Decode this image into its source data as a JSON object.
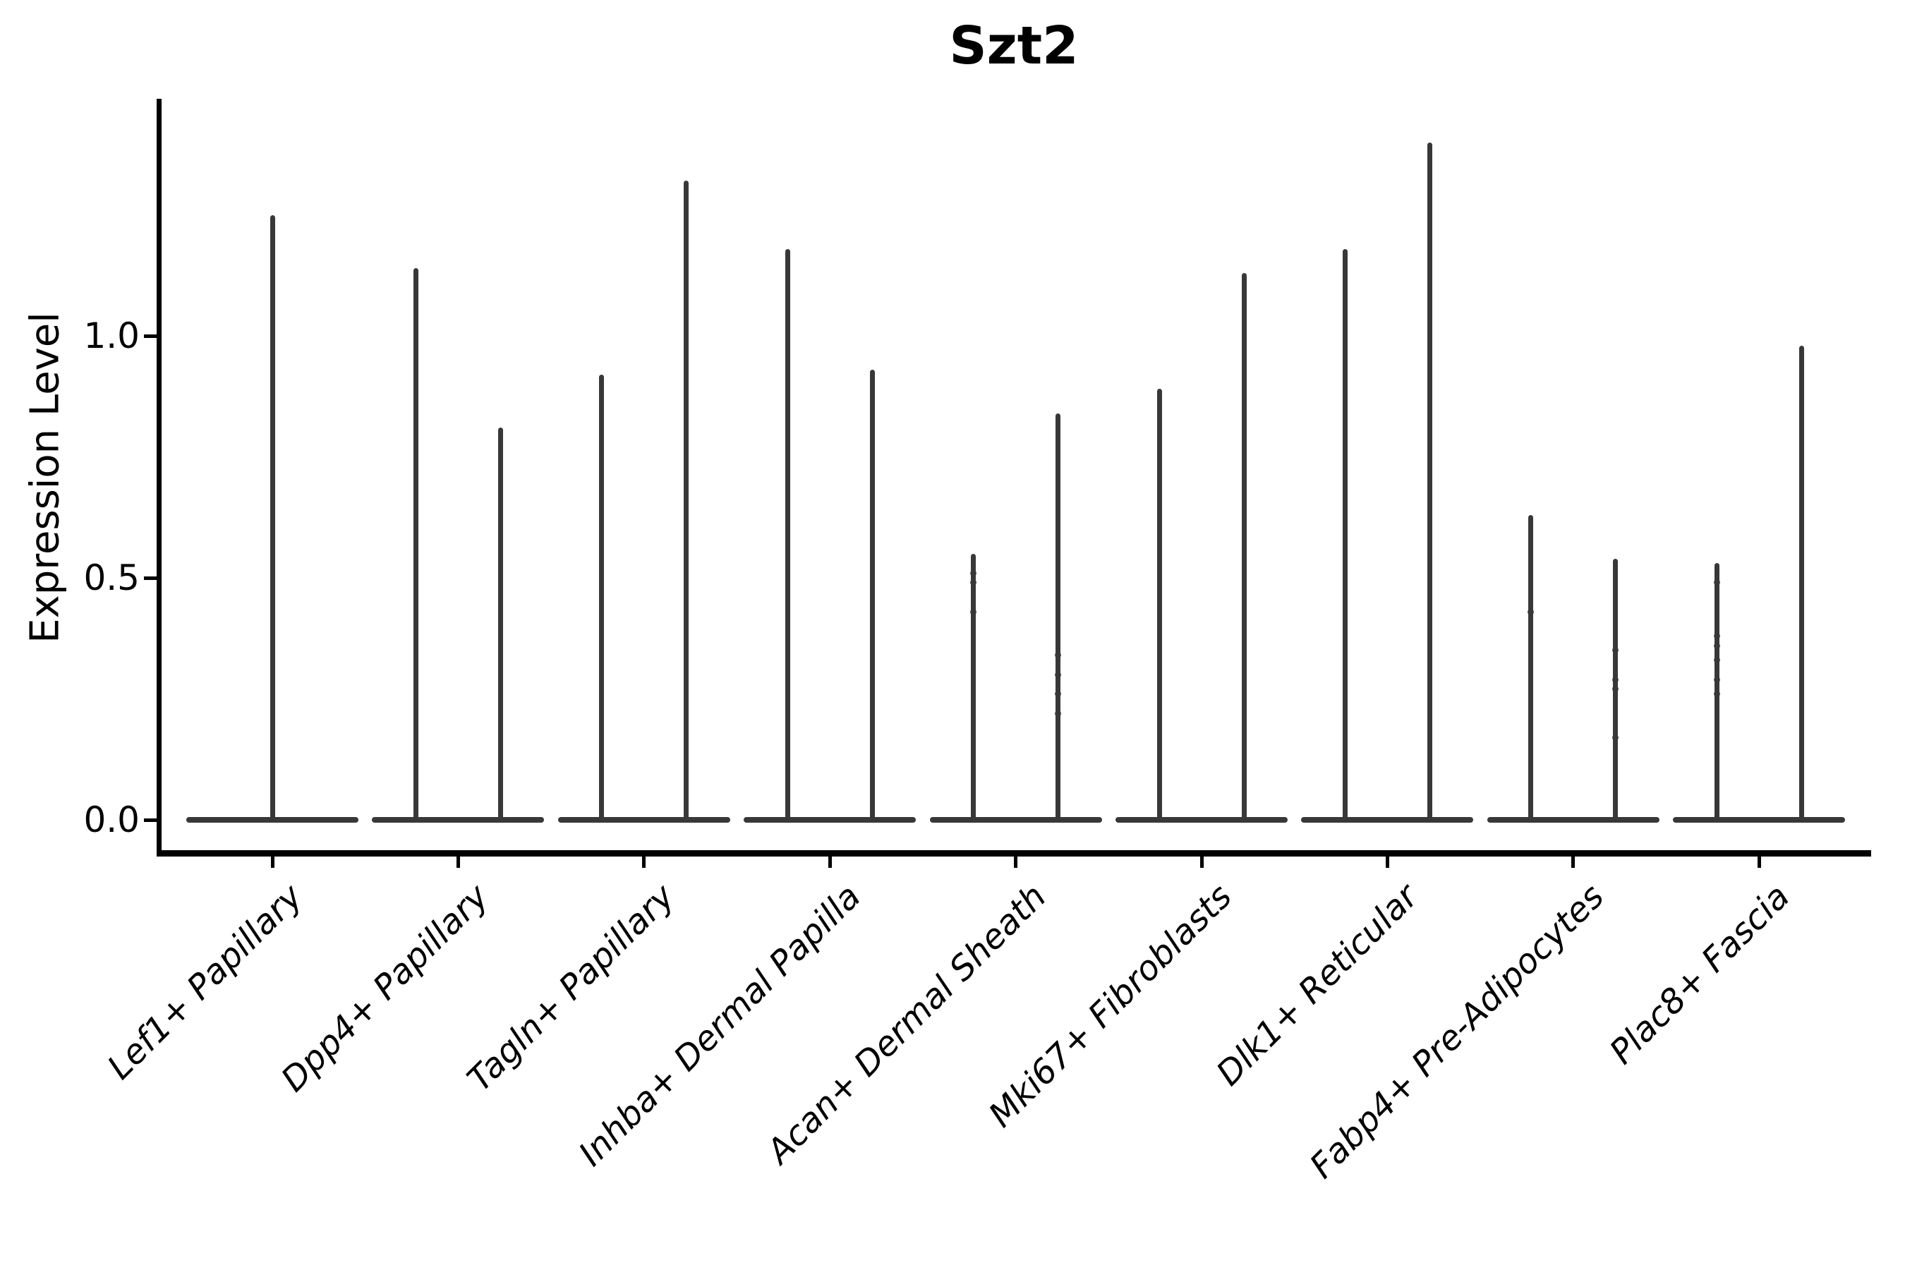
{
  "chart_data": {
    "type": "violin",
    "title": "Szt2",
    "xlabel": "",
    "ylabel": "Expression Level",
    "ylim": [
      -0.07,
      1.49
    ],
    "grid": false,
    "legend": "none",
    "violin_color": "#383838",
    "axis_color": "#000000",
    "yticks": [
      {
        "label": "0.0",
        "value": 0.0
      },
      {
        "label": "0.5",
        "value": 0.5
      },
      {
        "label": "1.0",
        "value": 1.0
      }
    ],
    "categories": [
      {
        "label": "Lef1+ Papillary",
        "violins": [
          {
            "pos": "center",
            "max": 1.25,
            "dots": []
          }
        ]
      },
      {
        "label": "Dpp4+ Papillary",
        "violins": [
          {
            "pos": "left",
            "max": 1.14,
            "dots": []
          },
          {
            "pos": "right",
            "max": 0.81,
            "dots": []
          }
        ]
      },
      {
        "label": "Tagln+ Papillary",
        "violins": [
          {
            "pos": "left",
            "max": 0.92,
            "dots": []
          },
          {
            "pos": "right",
            "max": 1.32,
            "dots": []
          }
        ]
      },
      {
        "label": "Inhba+ Dermal Papilla",
        "violins": [
          {
            "pos": "left",
            "max": 1.18,
            "dots": []
          },
          {
            "pos": "right",
            "max": 0.93,
            "dots": []
          }
        ]
      },
      {
        "label": "Acan+ Dermal Sheath",
        "violins": [
          {
            "pos": "left",
            "max": 0.55,
            "dots": [
              0.51,
              0.49,
              0.43
            ]
          },
          {
            "pos": "right",
            "max": 0.84,
            "dots": [
              0.34,
              0.3,
              0.26,
              0.22
            ]
          }
        ]
      },
      {
        "label": "Mki67+ Fibroblasts",
        "violins": [
          {
            "pos": "left",
            "max": 0.89,
            "dots": []
          },
          {
            "pos": "right",
            "max": 1.13,
            "dots": []
          }
        ]
      },
      {
        "label": "Dlk1+ Reticular",
        "violins": [
          {
            "pos": "left",
            "max": 1.18,
            "dots": []
          },
          {
            "pos": "right",
            "max": 1.4,
            "dots": []
          }
        ]
      },
      {
        "label": "Fabp4+ Pre-Adipocytes",
        "violins": [
          {
            "pos": "left",
            "max": 0.63,
            "dots": [
              0.43
            ]
          },
          {
            "pos": "right",
            "max": 0.54,
            "dots": [
              0.35,
              0.29,
              0.27,
              0.17
            ]
          }
        ]
      },
      {
        "label": "Plac8+ Fascia",
        "violins": [
          {
            "pos": "left",
            "max": 0.53,
            "dots": [
              0.49,
              0.38,
              0.36,
              0.33,
              0.29,
              0.26
            ]
          },
          {
            "pos": "right",
            "max": 0.98,
            "dots": []
          }
        ]
      }
    ]
  }
}
